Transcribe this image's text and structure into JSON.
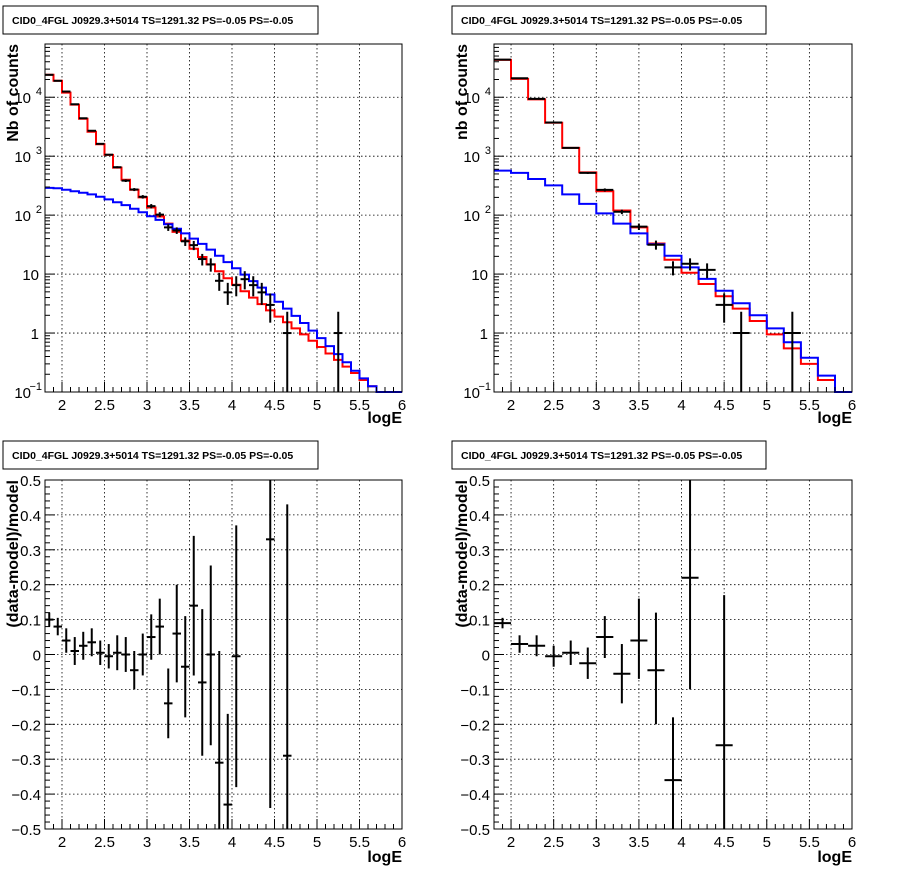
{
  "chart_data": [
    {
      "type": "histogram-log",
      "title": "CID0_4FGL J0929.3+5014 TS=1291.32 PS=-0.05 PS=-0.05",
      "xlabel": "logE",
      "ylabel": "Nb of counts",
      "xlim": [
        1.8,
        6
      ],
      "ylim": [
        0.1,
        80000
      ],
      "yscale": "log",
      "grid": true,
      "x_ticks": [
        "2",
        "2.5",
        "3",
        "3.5",
        "4",
        "4.5",
        "5",
        "5.5",
        "6"
      ],
      "y_ticks": [
        {
          "v": 0.1,
          "label": "10",
          "sup": "−1"
        },
        {
          "v": 1,
          "label": "1",
          "sup": ""
        },
        {
          "v": 10,
          "label": "10",
          "sup": ""
        },
        {
          "v": 100,
          "label": "10",
          "sup": "2"
        },
        {
          "v": 1000,
          "label": "10",
          "sup": "3"
        },
        {
          "v": 10000,
          "label": "10",
          "sup": "4"
        }
      ],
      "bin_edges": [
        1.8,
        1.9,
        2.0,
        2.1,
        2.2,
        2.3,
        2.4,
        2.5,
        2.6,
        2.7,
        2.8,
        2.9,
        3.0,
        3.1,
        3.2,
        3.3,
        3.4,
        3.5,
        3.6,
        3.7,
        3.8,
        3.9,
        4.0,
        4.1,
        4.2,
        4.3,
        4.4,
        4.5,
        4.6,
        4.7,
        4.8,
        4.9,
        5.0,
        5.1,
        5.2,
        5.3,
        5.4,
        5.5,
        5.6,
        5.7,
        5.8,
        5.9,
        6.0
      ],
      "series": [
        {
          "color": "#ff0000",
          "values": [
            24000,
            19000,
            12000,
            7500,
            4300,
            2600,
            1600,
            1050,
            640,
            400,
            270,
            200,
            135,
            95,
            72,
            52,
            37,
            27,
            19.5,
            14.6,
            11.2,
            8.5,
            6.6,
            5.1,
            4.0,
            3.1,
            2.42,
            1.9,
            1.52,
            1.2,
            0.95,
            0.74,
            0.58,
            0.45,
            0.35,
            0.27,
            0.21,
            0.16,
            0.125,
            0.1,
            0.1,
            0.1
          ]
        },
        {
          "color": "#0000ff",
          "values": [
            290,
            285,
            270,
            255,
            240,
            225,
            205,
            185,
            165,
            148,
            128,
            112,
            96,
            83,
            70,
            59,
            49,
            40,
            32.5,
            26,
            20.5,
            16,
            12.6,
            9.8,
            7.6,
            5.9,
            4.5,
            3.4,
            2.6,
            1.95,
            1.48,
            1.1,
            0.82,
            0.6,
            0.44,
            0.32,
            0.23,
            0.17,
            0.125,
            0.1,
            0.1,
            0.1
          ]
        }
      ],
      "points": [
        {
          "x": 1.85,
          "y": 24000,
          "xerr": 0.05,
          "ylo": 23800,
          "yhi": 24200
        },
        {
          "x": 1.95,
          "y": 19000,
          "xerr": 0.05,
          "ylo": 18800,
          "yhi": 19200
        },
        {
          "x": 2.05,
          "y": 12500,
          "xerr": 0.05,
          "ylo": 12300,
          "yhi": 12700
        },
        {
          "x": 2.15,
          "y": 7600,
          "xerr": 0.05,
          "ylo": 7450,
          "yhi": 7750
        },
        {
          "x": 2.25,
          "y": 4400,
          "xerr": 0.05,
          "ylo": 4300,
          "yhi": 4500
        },
        {
          "x": 2.35,
          "y": 2700,
          "xerr": 0.05,
          "ylo": 2630,
          "yhi": 2770
        },
        {
          "x": 2.45,
          "y": 1620,
          "xerr": 0.05,
          "ylo": 1580,
          "yhi": 1660
        },
        {
          "x": 2.55,
          "y": 1060,
          "xerr": 0.05,
          "ylo": 1030,
          "yhi": 1090
        },
        {
          "x": 2.65,
          "y": 650,
          "xerr": 0.05,
          "ylo": 625,
          "yhi": 675
        },
        {
          "x": 2.75,
          "y": 385,
          "xerr": 0.05,
          "ylo": 365,
          "yhi": 405
        },
        {
          "x": 2.85,
          "y": 272,
          "xerr": 0.05,
          "ylo": 256,
          "yhi": 288
        },
        {
          "x": 2.95,
          "y": 205,
          "xerr": 0.05,
          "ylo": 191,
          "yhi": 219
        },
        {
          "x": 3.05,
          "y": 142,
          "xerr": 0.05,
          "ylo": 130,
          "yhi": 154
        },
        {
          "x": 3.15,
          "y": 102,
          "xerr": 0.05,
          "ylo": 92,
          "yhi": 112
        },
        {
          "x": 3.25,
          "y": 62,
          "xerr": 0.05,
          "ylo": 54,
          "yhi": 70
        },
        {
          "x": 3.35,
          "y": 55,
          "xerr": 0.05,
          "ylo": 48,
          "yhi": 62
        },
        {
          "x": 3.45,
          "y": 36,
          "xerr": 0.05,
          "ylo": 30,
          "yhi": 42
        },
        {
          "x": 3.55,
          "y": 31,
          "xerr": 0.05,
          "ylo": 25.5,
          "yhi": 36.5
        },
        {
          "x": 3.65,
          "y": 18,
          "xerr": 0.05,
          "ylo": 14,
          "yhi": 22
        },
        {
          "x": 3.75,
          "y": 14.6,
          "xerr": 0.05,
          "ylo": 11,
          "yhi": 18.5
        },
        {
          "x": 3.85,
          "y": 7.7,
          "xerr": 0.05,
          "ylo": 5.2,
          "yhi": 10.5
        },
        {
          "x": 3.95,
          "y": 4.9,
          "xerr": 0.05,
          "ylo": 3.0,
          "yhi": 7.1
        },
        {
          "x": 4.05,
          "y": 6.5,
          "xerr": 0.05,
          "ylo": 4.2,
          "yhi": 9.2
        },
        {
          "x": 4.15,
          "y": 8.2,
          "xerr": 0.05,
          "ylo": 5.5,
          "yhi": 11.2
        },
        {
          "x": 4.25,
          "y": 6.5,
          "xerr": 0.05,
          "ylo": 4.2,
          "yhi": 9.2
        },
        {
          "x": 4.35,
          "y": 4.9,
          "xerr": 0.05,
          "ylo": 3.0,
          "yhi": 7.1
        },
        {
          "x": 4.45,
          "y": 3.0,
          "xerr": 0.05,
          "ylo": 1.5,
          "yhi": 4.7
        },
        {
          "x": 4.65,
          "y": 1,
          "xerr": 0.05,
          "ylo": 0.1,
          "yhi": 2.3
        },
        {
          "x": 5.25,
          "y": 1,
          "xerr": 0.05,
          "ylo": 0.1,
          "yhi": 2.3
        }
      ]
    },
    {
      "type": "histogram-log",
      "title": "CID0_4FGL J0929.3+5014 TS=1291.32 PS=-0.05 PS=-0.05",
      "xlabel": "logE",
      "ylabel": "nb of counts",
      "xlim": [
        1.8,
        6
      ],
      "ylim": [
        0.1,
        80000
      ],
      "yscale": "log",
      "grid": true,
      "x_ticks": [
        "2",
        "2.5",
        "3",
        "3.5",
        "4",
        "4.5",
        "5",
        "5.5",
        "6"
      ],
      "y_ticks": [
        {
          "v": 0.1,
          "label": "10",
          "sup": "−1"
        },
        {
          "v": 1,
          "label": "1",
          "sup": ""
        },
        {
          "v": 10,
          "label": "10",
          "sup": ""
        },
        {
          "v": 100,
          "label": "10",
          "sup": "2"
        },
        {
          "v": 1000,
          "label": "10",
          "sup": "3"
        },
        {
          "v": 10000,
          "label": "10",
          "sup": "4"
        }
      ],
      "bin_edges": [
        1.8,
        2.0,
        2.2,
        2.4,
        2.6,
        2.8,
        3.0,
        3.2,
        3.4,
        3.6,
        3.8,
        4.0,
        4.2,
        4.4,
        4.6,
        4.8,
        5.0,
        5.2,
        5.4,
        5.6,
        5.8,
        6.0
      ],
      "series": [
        {
          "color": "#ff0000",
          "values": [
            43000,
            20500,
            9200,
            3700,
            1380,
            530,
            255,
            120,
            62,
            33,
            17.5,
            10.5,
            6.8,
            4.2,
            2.6,
            1.6,
            0.95,
            0.55,
            0.3,
            0.16,
            0.1
          ]
        },
        {
          "color": "#0000ff",
          "values": [
            570,
            520,
            410,
            320,
            225,
            155,
            107,
            72,
            49,
            32,
            20.5,
            13,
            8.3,
            5.2,
            3.2,
            2.0,
            1.2,
            0.7,
            0.38,
            0.19,
            0.1
          ]
        }
      ],
      "points": [
        {
          "x": 1.9,
          "y": 43500,
          "xerr": 0.1,
          "ylo": 43200,
          "yhi": 43800
        },
        {
          "x": 2.1,
          "y": 21000,
          "xerr": 0.1,
          "ylo": 20800,
          "yhi": 21200
        },
        {
          "x": 2.3,
          "y": 9400,
          "xerr": 0.1,
          "ylo": 9300,
          "yhi": 9500
        },
        {
          "x": 2.5,
          "y": 3720,
          "xerr": 0.1,
          "ylo": 3660,
          "yhi": 3780
        },
        {
          "x": 2.7,
          "y": 1385,
          "xerr": 0.1,
          "ylo": 1350,
          "yhi": 1420
        },
        {
          "x": 2.9,
          "y": 520,
          "xerr": 0.1,
          "ylo": 500,
          "yhi": 540
        },
        {
          "x": 3.1,
          "y": 268,
          "xerr": 0.1,
          "ylo": 252,
          "yhi": 284
        },
        {
          "x": 3.3,
          "y": 114,
          "xerr": 0.1,
          "ylo": 104,
          "yhi": 124
        },
        {
          "x": 3.5,
          "y": 64,
          "xerr": 0.1,
          "ylo": 56,
          "yhi": 72
        },
        {
          "x": 3.7,
          "y": 31.5,
          "xerr": 0.1,
          "ylo": 26,
          "yhi": 37
        },
        {
          "x": 3.9,
          "y": 13,
          "xerr": 0.1,
          "ylo": 9.5,
          "yhi": 16.5
        },
        {
          "x": 4.1,
          "y": 15,
          "xerr": 0.1,
          "ylo": 11.5,
          "yhi": 18.5
        },
        {
          "x": 4.3,
          "y": 11.8,
          "xerr": 0.1,
          "ylo": 8.5,
          "yhi": 15.2
        },
        {
          "x": 4.5,
          "y": 3,
          "xerr": 0.1,
          "ylo": 1.5,
          "yhi": 4.7
        },
        {
          "x": 4.7,
          "y": 1,
          "xerr": 0.1,
          "ylo": 0.1,
          "yhi": 2.3
        },
        {
          "x": 5.3,
          "y": 1,
          "xerr": 0.1,
          "ylo": 0.1,
          "yhi": 2.3
        }
      ]
    },
    {
      "type": "residual-errorbar",
      "title": "CID0_4FGL J0929.3+5014 TS=1291.32 PS=-0.05 PS=-0.05",
      "xlabel": "logE",
      "ylabel": "(data-model)/model",
      "xlim": [
        1.8,
        6
      ],
      "ylim": [
        -0.5,
        0.5
      ],
      "grid": true,
      "x_ticks": [
        "2",
        "2.5",
        "3",
        "3.5",
        "4",
        "4.5",
        "5",
        "5.5",
        "6"
      ],
      "y_ticks": [
        "−0.5",
        "−0.4",
        "−0.3",
        "−0.2",
        "−0.1",
        "0",
        "0.1",
        "0.2",
        "0.3",
        "0.4",
        "0.5"
      ],
      "points": [
        {
          "x": 1.85,
          "y": 0.1,
          "xerr": 0.05,
          "ylo": 0.08,
          "yhi": 0.12
        },
        {
          "x": 1.95,
          "y": 0.08,
          "xerr": 0.05,
          "ylo": 0.055,
          "yhi": 0.105
        },
        {
          "x": 2.05,
          "y": 0.04,
          "xerr": 0.05,
          "ylo": 0.005,
          "yhi": 0.075
        },
        {
          "x": 2.15,
          "y": 0.01,
          "xerr": 0.05,
          "ylo": -0.03,
          "yhi": 0.05
        },
        {
          "x": 2.25,
          "y": 0.025,
          "xerr": 0.05,
          "ylo": -0.015,
          "yhi": 0.065
        },
        {
          "x": 2.35,
          "y": 0.035,
          "xerr": 0.05,
          "ylo": -0.005,
          "yhi": 0.075
        },
        {
          "x": 2.45,
          "y": 0.005,
          "xerr": 0.05,
          "ylo": -0.03,
          "yhi": 0.04
        },
        {
          "x": 2.55,
          "y": -0.005,
          "xerr": 0.05,
          "ylo": -0.04,
          "yhi": 0.03
        },
        {
          "x": 2.65,
          "y": 0.005,
          "xerr": 0.05,
          "ylo": -0.045,
          "yhi": 0.055
        },
        {
          "x": 2.75,
          "y": 0.0,
          "xerr": 0.05,
          "ylo": -0.05,
          "yhi": 0.05
        },
        {
          "x": 2.85,
          "y": -0.045,
          "xerr": 0.05,
          "ylo": -0.1,
          "yhi": 0.01
        },
        {
          "x": 2.95,
          "y": 0.0,
          "xerr": 0.05,
          "ylo": -0.06,
          "yhi": 0.06
        },
        {
          "x": 3.05,
          "y": 0.05,
          "xerr": 0.05,
          "ylo": -0.015,
          "yhi": 0.115
        },
        {
          "x": 3.15,
          "y": 0.08,
          "xerr": 0.05,
          "ylo": 0.0,
          "yhi": 0.16
        },
        {
          "x": 3.25,
          "y": -0.14,
          "xerr": 0.05,
          "ylo": -0.24,
          "yhi": -0.04
        },
        {
          "x": 3.35,
          "y": 0.06,
          "xerr": 0.05,
          "ylo": -0.08,
          "yhi": 0.2
        },
        {
          "x": 3.45,
          "y": -0.035,
          "xerr": 0.05,
          "ylo": -0.18,
          "yhi": 0.11
        },
        {
          "x": 3.55,
          "y": 0.14,
          "xerr": 0.05,
          "ylo": -0.06,
          "yhi": 0.34
        },
        {
          "x": 3.65,
          "y": -0.08,
          "xerr": 0.05,
          "ylo": -0.29,
          "yhi": 0.13
        },
        {
          "x": 3.75,
          "y": 0.0,
          "xerr": 0.05,
          "ylo": -0.26,
          "yhi": 0.255
        },
        {
          "x": 3.85,
          "y": -0.31,
          "xerr": 0.05,
          "ylo": -0.5,
          "yhi": 0.01
        },
        {
          "x": 3.95,
          "y": -0.43,
          "xerr": 0.05,
          "ylo": -0.5,
          "yhi": -0.17
        },
        {
          "x": 4.05,
          "y": -0.005,
          "xerr": 0.05,
          "ylo": -0.38,
          "yhi": 0.37
        },
        {
          "x": 4.45,
          "y": 0.33,
          "xerr": 0.05,
          "ylo": -0.44,
          "yhi": 0.5
        },
        {
          "x": 4.65,
          "y": -0.29,
          "xerr": 0.05,
          "ylo": -0.5,
          "yhi": 0.43
        }
      ]
    },
    {
      "type": "residual-errorbar",
      "title": "CID0_4FGL J0929.3+5014 TS=1291.32 PS=-0.05 PS=-0.05",
      "xlabel": "logE",
      "ylabel": "(data-model)/model",
      "xlim": [
        1.8,
        6
      ],
      "ylim": [
        -0.5,
        0.5
      ],
      "grid": true,
      "x_ticks": [
        "2",
        "2.5",
        "3",
        "3.5",
        "4",
        "4.5",
        "5",
        "5.5",
        "6"
      ],
      "y_ticks": [
        "−0.5",
        "−0.4",
        "−0.3",
        "−0.2",
        "−0.1",
        "0",
        "0.1",
        "0.2",
        "0.3",
        "0.4",
        "0.5"
      ],
      "points": [
        {
          "x": 1.9,
          "y": 0.09,
          "xerr": 0.1,
          "ylo": 0.075,
          "yhi": 0.105
        },
        {
          "x": 2.1,
          "y": 0.03,
          "xerr": 0.1,
          "ylo": 0.005,
          "yhi": 0.055
        },
        {
          "x": 2.3,
          "y": 0.025,
          "xerr": 0.1,
          "ylo": -0.005,
          "yhi": 0.055
        },
        {
          "x": 2.5,
          "y": -0.005,
          "xerr": 0.1,
          "ylo": -0.035,
          "yhi": 0.025
        },
        {
          "x": 2.7,
          "y": 0.005,
          "xerr": 0.1,
          "ylo": -0.03,
          "yhi": 0.04
        },
        {
          "x": 2.9,
          "y": -0.025,
          "xerr": 0.1,
          "ylo": -0.07,
          "yhi": 0.02
        },
        {
          "x": 3.1,
          "y": 0.05,
          "xerr": 0.1,
          "ylo": -0.01,
          "yhi": 0.11
        },
        {
          "x": 3.3,
          "y": -0.055,
          "xerr": 0.1,
          "ylo": -0.14,
          "yhi": 0.03
        },
        {
          "x": 3.5,
          "y": 0.04,
          "xerr": 0.1,
          "ylo": -0.07,
          "yhi": 0.16
        },
        {
          "x": 3.7,
          "y": -0.045,
          "xerr": 0.1,
          "ylo": -0.2,
          "yhi": 0.12
        },
        {
          "x": 3.9,
          "y": -0.36,
          "xerr": 0.1,
          "ylo": -0.5,
          "yhi": -0.18
        },
        {
          "x": 4.1,
          "y": 0.22,
          "xerr": 0.1,
          "ylo": -0.1,
          "yhi": 0.5
        },
        {
          "x": 4.5,
          "y": -0.26,
          "xerr": 0.1,
          "ylo": -0.5,
          "yhi": 0.17
        }
      ]
    }
  ]
}
